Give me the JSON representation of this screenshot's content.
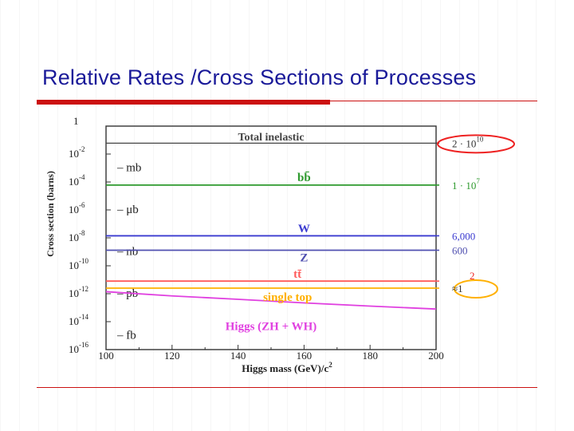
{
  "slide": {
    "title": "Relative Rates /Cross Sections of Processes"
  },
  "colors": {
    "title": "#1a1a99",
    "rule": "#cc1111",
    "axis": "#333333",
    "total_inelastic": "#444444",
    "bb": "#2e9a2e",
    "w": "#3b3bd0",
    "z": "#5050b0",
    "tt": "#ff5a5a",
    "single_top": "#ffb000",
    "higgs": "#e040e0"
  },
  "chart_data": {
    "type": "line",
    "x_scale": "linear",
    "y_scale": "log",
    "xlim": [
      100,
      200
    ],
    "ylim": [
      1e-16,
      1
    ],
    "xlabel": "Higgs mass (GeV)/c",
    "xlabel_superscript": "2",
    "ylabel": "Cross section (barns)",
    "x_ticks": [
      100,
      120,
      140,
      160,
      180,
      200
    ],
    "x_tick_labels": [
      "100",
      "120",
      "140",
      "160",
      "180",
      "200"
    ],
    "y_ticks": [
      {
        "value": 1,
        "base": "1",
        "exp": ""
      },
      {
        "value": 0.01,
        "base": "10",
        "exp": "-2"
      },
      {
        "value": 0.0001,
        "base": "10",
        "exp": "-4"
      },
      {
        "value": 1e-06,
        "base": "10",
        "exp": "-6"
      },
      {
        "value": 1e-08,
        "base": "10",
        "exp": "-8"
      },
      {
        "value": 1e-10,
        "base": "10",
        "exp": "-10"
      },
      {
        "value": 1e-12,
        "base": "10",
        "exp": "-12"
      },
      {
        "value": 1e-14,
        "base": "10",
        "exp": "-14"
      },
      {
        "value": 1e-16,
        "base": "10",
        "exp": "-16"
      }
    ],
    "unit_labels": [
      {
        "label": "mb",
        "value": 0.001
      },
      {
        "label": "μb",
        "value": 1e-06
      },
      {
        "label": "nb",
        "value": 1e-09
      },
      {
        "label": "pb",
        "value": 1e-12
      },
      {
        "label": "fb",
        "value": 1e-15
      }
    ],
    "series": [
      {
        "name": "Total inelastic",
        "color_key": "total_inelastic",
        "x": [
          100,
          200
        ],
        "y": [
          0.06,
          0.06
        ],
        "label_at": [
          150,
          0.18
        ],
        "rate": "2 · 10",
        "rate_exp": "10",
        "rate_color": "#333333",
        "rate_circle": "#ee2222"
      },
      {
        "name": "bb̄",
        "color_key": "bb",
        "x": [
          100,
          200
        ],
        "y": [
          6e-05,
          6e-05
        ],
        "label_at": [
          160,
          0.00022
        ],
        "rate": "1 · 10",
        "rate_exp": "7",
        "rate_color": "#2e9a2e",
        "rate_circle": ""
      },
      {
        "name": "W",
        "color_key": "w",
        "x": [
          100,
          200
        ],
        "y": [
          1.4e-08,
          1.4e-08
        ],
        "label_at": [
          160,
          5e-08
        ],
        "rate": "6,000",
        "rate_exp": "",
        "rate_color": "#3b3bd0",
        "rate_circle": ""
      },
      {
        "name": "Z",
        "color_key": "z",
        "x": [
          100,
          200
        ],
        "y": [
          1.3e-09,
          1.3e-09
        ],
        "label_at": [
          160,
          4e-10
        ],
        "rate": "600",
        "rate_exp": "",
        "rate_color": "#5050b0",
        "rate_circle": ""
      },
      {
        "name": "tt̄",
        "color_key": "tt",
        "x": [
          100,
          200
        ],
        "y": [
          8e-12,
          8e-12
        ],
        "label_at": [
          158,
          2.6e-11
        ],
        "rate": "2",
        "rate_exp": "",
        "rate_color": "#ee2222",
        "rate_circle": ""
      },
      {
        "name": "single top",
        "color_key": "single_top",
        "x": [
          100,
          200
        ],
        "y": [
          2.5e-12,
          2.5e-12
        ],
        "label_at": [
          155,
          6e-13
        ],
        "rate": "≈1",
        "rate_exp": "",
        "rate_color": "#333333",
        "rate_circle": "#ffb000"
      },
      {
        "name": "Higgs (ZH + WH)",
        "color_key": "higgs",
        "x": [
          100,
          120,
          140,
          160,
          180,
          200
        ],
        "y": [
          1.4e-12,
          7e-13,
          4e-13,
          2.2e-13,
          1.3e-13,
          8e-14
        ],
        "label_at": [
          150,
          5e-15
        ],
        "rate": "",
        "rate_exp": "",
        "rate_color": "",
        "rate_circle": ""
      }
    ]
  }
}
